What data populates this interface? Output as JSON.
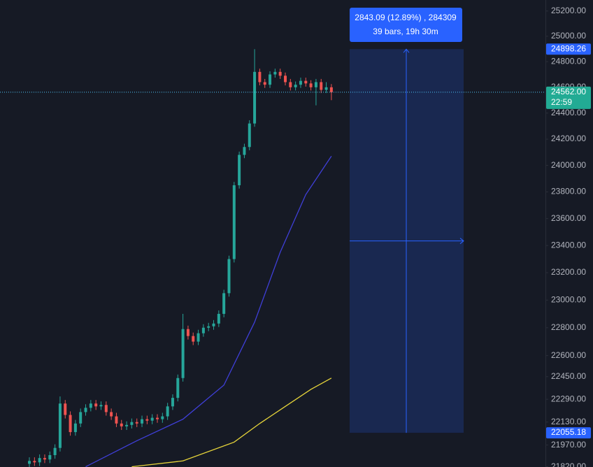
{
  "chart_data": {
    "type": "candlestick",
    "log": true,
    "ylim": [
      21818,
      25288
    ],
    "yticks": [
      {
        "value": 25200,
        "label": "25200.00"
      },
      {
        "value": 25000,
        "label": "25000.00"
      },
      {
        "value": 24800,
        "label": "24800.00"
      },
      {
        "value": 24600,
        "label": "24600.00"
      },
      {
        "value": 24400,
        "label": "24400.00"
      },
      {
        "value": 24200,
        "label": "24200.00"
      },
      {
        "value": 24000,
        "label": "24000.00"
      },
      {
        "value": 23800,
        "label": "23800.00"
      },
      {
        "value": 23600,
        "label": "23600.00"
      },
      {
        "value": 23400,
        "label": "23400.00"
      },
      {
        "value": 23200,
        "label": "23200.00"
      },
      {
        "value": 23000,
        "label": "23000.00"
      },
      {
        "value": 22800,
        "label": "22800.00"
      },
      {
        "value": 22600,
        "label": "22600.00"
      },
      {
        "value": 22450,
        "label": "22450.00"
      },
      {
        "value": 22290,
        "label": "22290.00"
      },
      {
        "value": 22130,
        "label": "22130.00"
      },
      {
        "value": 21970,
        "label": "21970.00"
      },
      {
        "value": 21820,
        "label": "21820.00"
      }
    ],
    "up_color": "#26a69a",
    "down_color": "#ef5350",
    "open": [
      21840,
      21860,
      21850,
      21880,
      21870,
      21900,
      21950,
      22260,
      22180,
      22060,
      22120,
      22200,
      22230,
      22260,
      22240,
      22250,
      22200,
      22170,
      22120,
      22100,
      22110,
      22130,
      22120,
      22150,
      22140,
      22160,
      22150,
      22170,
      22240,
      22300,
      22440,
      22790,
      22740,
      22700,
      22760,
      22800,
      22810,
      22830,
      22900,
      23050,
      23300,
      23850,
      24080,
      24140,
      24320,
      24720,
      24640,
      24620,
      24700,
      24720,
      24690,
      24640,
      24600,
      24620,
      24650,
      24630,
      24600,
      24640,
      24580,
      24600
    ],
    "high": [
      21885,
      21885,
      21905,
      21905,
      21925,
      21975,
      22310,
      22285,
      22205,
      22145,
      22225,
      22255,
      22285,
      22285,
      22275,
      22275,
      22225,
      22195,
      22145,
      22135,
      22155,
      22155,
      22175,
      22175,
      22185,
      22185,
      22195,
      22265,
      22325,
      22465,
      22900,
      22815,
      22765,
      22785,
      22825,
      22835,
      22855,
      22925,
      23075,
      23325,
      23875,
      24105,
      24165,
      24345,
      24898,
      24745,
      24665,
      24725,
      24745,
      24745,
      24715,
      24665,
      24645,
      24675,
      24675,
      24655,
      24665,
      24665,
      24640,
      24625
    ],
    "low": [
      21815,
      21825,
      21825,
      21845,
      21845,
      21875,
      21925,
      22155,
      22035,
      22035,
      22095,
      22175,
      22205,
      22215,
      22215,
      22175,
      22145,
      22095,
      22075,
      22075,
      22085,
      22095,
      22095,
      22115,
      22115,
      22125,
      22125,
      22145,
      22215,
      22275,
      22415,
      22715,
      22675,
      22675,
      22735,
      22775,
      22785,
      22805,
      22875,
      23025,
      23275,
      23825,
      24055,
      24115,
      24295,
      24615,
      24595,
      24595,
      24675,
      24665,
      24615,
      24575,
      24575,
      24595,
      24605,
      24575,
      24460,
      24555,
      24555,
      24500
    ],
    "close": [
      21860,
      21850,
      21880,
      21870,
      21900,
      21950,
      22260,
      22180,
      22060,
      22120,
      22200,
      22230,
      22260,
      22240,
      22250,
      22200,
      22170,
      22120,
      22100,
      22110,
      22130,
      22120,
      22150,
      22140,
      22160,
      22150,
      22170,
      22240,
      22300,
      22440,
      22790,
      22740,
      22700,
      22760,
      22800,
      22810,
      22830,
      22900,
      23050,
      23300,
      23850,
      24080,
      24140,
      24320,
      24720,
      24640,
      24620,
      24700,
      24720,
      24690,
      24640,
      24600,
      24620,
      24650,
      24630,
      24600,
      24640,
      24580,
      24600,
      24562
    ],
    "lines": [
      {
        "color": "#3f3fd8",
        "x": [
          11,
          21,
          30,
          38,
          44,
          49,
          54,
          59
        ],
        "values": [
          21820,
          22000,
          22150,
          22390,
          22840,
          23350,
          23780,
          24070
        ]
      },
      {
        "color": "#e6d43a",
        "x": [
          20,
          30,
          40,
          45,
          50,
          55,
          59
        ],
        "values": [
          21820,
          21860,
          21990,
          22120,
          22240,
          22360,
          22440
        ]
      }
    ],
    "price_tags": [
      {
        "value": 24898.26,
        "label": "24898.26",
        "color": "#2962ff"
      },
      {
        "value": 24562,
        "label": "24562.00",
        "time": "22:59",
        "color": "#22ab94"
      },
      {
        "value": 22055.18,
        "label": "22055.18",
        "color": "#2962ff"
      }
    ],
    "measure": {
      "line1": "2843.09 (12.89%) , 284309",
      "line2": "39 bars, 19h 30m"
    }
  }
}
